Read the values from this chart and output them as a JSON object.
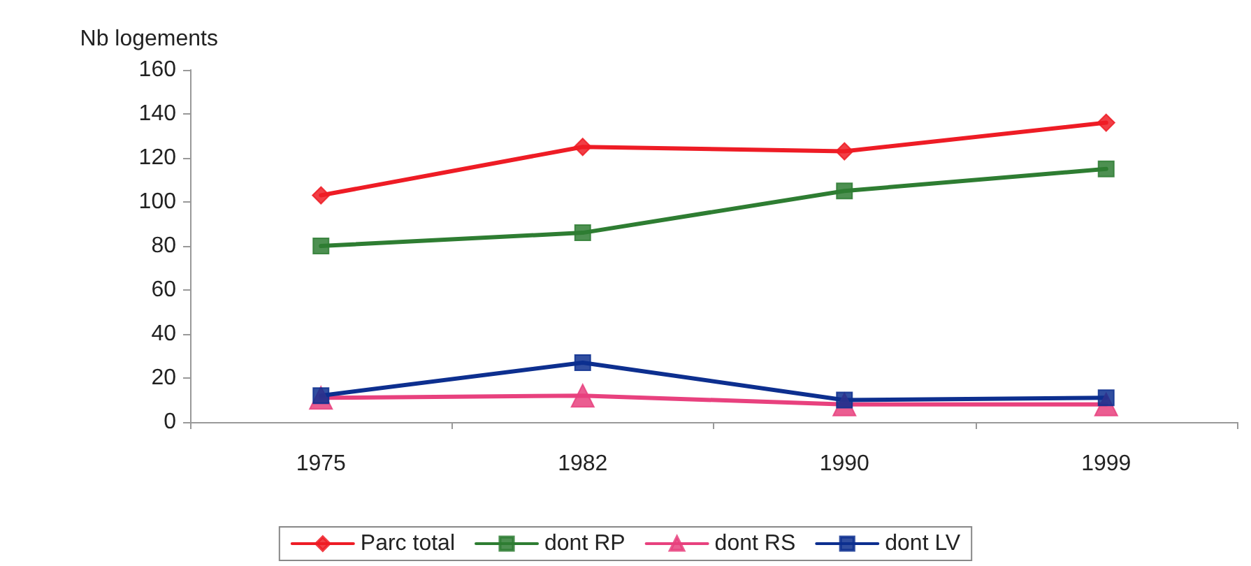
{
  "chart_data": {
    "type": "line",
    "ylabel": "Nb logements",
    "categories": [
      "1975",
      "1982",
      "1990",
      "1999"
    ],
    "series": [
      {
        "name": "Parc total",
        "color": "#ee1c25",
        "marker": "diamond",
        "values": [
          103,
          125,
          123,
          136
        ]
      },
      {
        "name": "dont RP",
        "color": "#2e7d32",
        "marker": "square",
        "values": [
          80,
          86,
          105,
          115
        ]
      },
      {
        "name": "dont RS",
        "color": "#e8417e",
        "marker": "triangle",
        "values": [
          11,
          12,
          8,
          8
        ]
      },
      {
        "name": "dont LV",
        "color": "#0d2f8f",
        "marker": "square",
        "values": [
          12,
          27,
          10,
          11
        ]
      }
    ],
    "ylim": [
      0,
      160
    ],
    "yticks": [
      0,
      20,
      40,
      60,
      80,
      100,
      120,
      140,
      160
    ],
    "grid": false,
    "legend": "bottom",
    "line_style": "solid"
  }
}
